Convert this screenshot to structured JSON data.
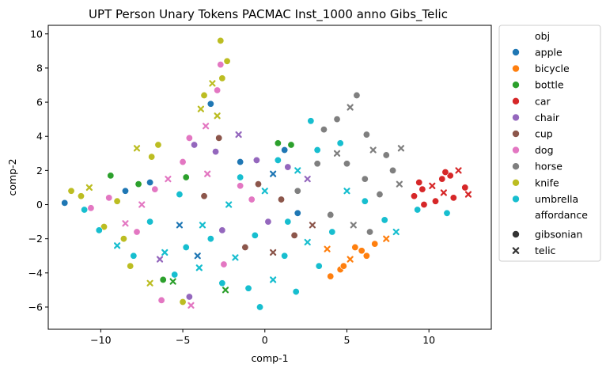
{
  "chart_data": {
    "type": "scatter",
    "title": "UPT Person Unary Tokens PACMAC Inst_1000 anno Gibs_Telic",
    "xlabel": "comp-1",
    "ylabel": "comp-2",
    "xlim": [
      -13.2,
      13.8
    ],
    "ylim": [
      -7.3,
      10.5
    ],
    "xticks": [
      -10,
      -5,
      0,
      5,
      10
    ],
    "yticks": [
      -6,
      -4,
      -2,
      0,
      2,
      4,
      6,
      8,
      10
    ],
    "xtick_labels": [
      "−10",
      "−5",
      "0",
      "5",
      "10"
    ],
    "ytick_labels": [
      "−6",
      "−4",
      "−2",
      "0",
      "2",
      "4",
      "6",
      "8",
      "10"
    ],
    "grid": false,
    "legend": {
      "placement": "outside-right",
      "hue_title": "obj",
      "style_title": "affordance",
      "styles": [
        {
          "name": "gibsonian",
          "marker": "circle"
        },
        {
          "name": "telic",
          "marker": "x"
        }
      ]
    },
    "series": [
      {
        "name": "apple",
        "color": "#1f77b4",
        "points": [
          [
            -12.2,
            0.1
          ],
          [
            -8.5,
            0.8
          ],
          [
            -5.2,
            -1.2
          ],
          [
            -3.3,
            5.9
          ],
          [
            -1.5,
            2.5
          ],
          [
            0.5,
            1.8
          ],
          [
            2.0,
            -0.5
          ],
          [
            -7.0,
            1.3
          ],
          [
            -4.1,
            -3.0
          ],
          [
            1.2,
            3.2
          ]
        ]
      },
      {
        "name": "bicycle",
        "color": "#ff7f0e",
        "points": [
          [
            4.0,
            -4.2
          ],
          [
            4.6,
            -3.8
          ],
          [
            5.2,
            -3.2
          ],
          [
            5.9,
            -2.7
          ],
          [
            6.7,
            -2.3
          ],
          [
            7.4,
            -2.0
          ],
          [
            4.8,
            -3.6
          ],
          [
            6.2,
            -3.0
          ],
          [
            3.8,
            -2.6
          ],
          [
            5.5,
            -2.5
          ]
        ]
      },
      {
        "name": "bottle",
        "color": "#2ca02c",
        "points": [
          [
            -9.4,
            1.7
          ],
          [
            -7.7,
            1.2
          ],
          [
            -5.6,
            -4.5
          ],
          [
            -4.8,
            1.6
          ],
          [
            1.6,
            3.5
          ],
          [
            -2.4,
            -5.0
          ],
          [
            -6.2,
            -4.4
          ],
          [
            0.8,
            3.6
          ]
        ]
      },
      {
        "name": "car",
        "color": "#d62728",
        "points": [
          [
            9.1,
            0.5
          ],
          [
            9.6,
            0.9
          ],
          [
            10.2,
            1.1
          ],
          [
            10.8,
            1.5
          ],
          [
            11.3,
            1.7
          ],
          [
            11.8,
            2.0
          ],
          [
            12.2,
            1.0
          ],
          [
            11.5,
            0.4
          ],
          [
            10.9,
            0.7
          ],
          [
            10.4,
            0.2
          ],
          [
            9.7,
            0.0
          ],
          [
            12.4,
            0.6
          ],
          [
            11.0,
            1.9
          ],
          [
            9.4,
            1.3
          ]
        ]
      },
      {
        "name": "chair",
        "color": "#9467bd",
        "points": [
          [
            -4.3,
            3.5
          ],
          [
            -3.0,
            3.1
          ],
          [
            -1.6,
            4.1
          ],
          [
            -0.5,
            2.6
          ],
          [
            1.4,
            2.2
          ],
          [
            -6.4,
            -3.2
          ],
          [
            -4.6,
            -5.4
          ],
          [
            -2.6,
            -1.5
          ],
          [
            2.6,
            1.5
          ],
          [
            0.2,
            -1.0
          ]
        ]
      },
      {
        "name": "cup",
        "color": "#8c564b",
        "points": [
          [
            -2.8,
            3.9
          ],
          [
            -1.2,
            -2.5
          ],
          [
            0.5,
            -2.8
          ],
          [
            1.8,
            -1.8
          ],
          [
            -0.4,
            1.2
          ],
          [
            2.9,
            -1.2
          ],
          [
            -3.7,
            0.5
          ],
          [
            1.0,
            0.3
          ]
        ]
      },
      {
        "name": "dog",
        "color": "#e377c2",
        "points": [
          [
            -10.6,
            -0.2
          ],
          [
            -9.5,
            0.4
          ],
          [
            -8.5,
            -1.1
          ],
          [
            -7.8,
            -1.6
          ],
          [
            -6.7,
            0.9
          ],
          [
            -5.9,
            1.5
          ],
          [
            -5.0,
            2.5
          ],
          [
            -4.6,
            3.9
          ],
          [
            -3.6,
            4.6
          ],
          [
            -2.9,
            6.7
          ],
          [
            -2.7,
            8.2
          ],
          [
            -3.5,
            1.8
          ],
          [
            -1.5,
            1.1
          ],
          [
            -6.3,
            -5.6
          ],
          [
            -4.5,
            -5.9
          ],
          [
            -2.5,
            -3.5
          ],
          [
            -0.8,
            0.3
          ],
          [
            -7.5,
            0.0
          ]
        ]
      },
      {
        "name": "horse",
        "color": "#7f7f7f",
        "points": [
          [
            3.6,
            4.4
          ],
          [
            4.4,
            5.0
          ],
          [
            5.2,
            5.7
          ],
          [
            5.6,
            6.4
          ],
          [
            6.2,
            4.1
          ],
          [
            6.6,
            3.2
          ],
          [
            7.4,
            2.9
          ],
          [
            7.8,
            2.0
          ],
          [
            8.2,
            1.2
          ],
          [
            5.0,
            2.4
          ],
          [
            6.1,
            1.5
          ],
          [
            4.4,
            3.0
          ],
          [
            3.2,
            2.4
          ],
          [
            7.0,
            0.6
          ],
          [
            5.4,
            -1.2
          ],
          [
            4.0,
            -0.6
          ],
          [
            6.4,
            -1.6
          ],
          [
            8.3,
            3.3
          ],
          [
            2.0,
            0.8
          ]
        ]
      },
      {
        "name": "knife",
        "color": "#bcbd22",
        "points": [
          [
            -11.8,
            0.8
          ],
          [
            -11.2,
            0.5
          ],
          [
            -10.7,
            1.0
          ],
          [
            -9.8,
            -1.3
          ],
          [
            -8.6,
            -2.0
          ],
          [
            -7.8,
            3.3
          ],
          [
            -6.5,
            3.5
          ],
          [
            -3.7,
            6.4
          ],
          [
            -3.2,
            7.1
          ],
          [
            -2.7,
            9.6
          ],
          [
            -2.3,
            8.4
          ],
          [
            -3.9,
            5.6
          ],
          [
            -2.6,
            7.4
          ],
          [
            -9.0,
            0.2
          ],
          [
            -7.0,
            -4.6
          ],
          [
            -5.0,
            -5.7
          ],
          [
            -8.2,
            -3.6
          ],
          [
            -2.9,
            5.2
          ],
          [
            -6.9,
            2.8
          ]
        ]
      },
      {
        "name": "umbrella",
        "color": "#17becf",
        "points": [
          [
            -11.0,
            -0.3
          ],
          [
            -10.1,
            -1.5
          ],
          [
            -9.0,
            -2.4
          ],
          [
            -8.0,
            -3.0
          ],
          [
            -7.0,
            -1.0
          ],
          [
            -6.1,
            -2.8
          ],
          [
            -5.5,
            -4.1
          ],
          [
            -4.8,
            -2.5
          ],
          [
            -4.0,
            -3.7
          ],
          [
            -3.3,
            -2.0
          ],
          [
            -2.6,
            -4.6
          ],
          [
            -1.8,
            -3.1
          ],
          [
            -1.0,
            -4.9
          ],
          [
            -0.3,
            -6.0
          ],
          [
            0.5,
            -4.4
          ],
          [
            1.2,
            -3.0
          ],
          [
            1.9,
            -5.1
          ],
          [
            2.6,
            -2.2
          ],
          [
            3.3,
            -3.6
          ],
          [
            4.1,
            -1.6
          ],
          [
            0.0,
            0.8
          ],
          [
            -1.5,
            1.6
          ],
          [
            0.8,
            2.6
          ],
          [
            2.0,
            2.0
          ],
          [
            3.2,
            3.2
          ],
          [
            4.6,
            3.6
          ],
          [
            5.0,
            0.8
          ],
          [
            6.1,
            0.2
          ],
          [
            7.3,
            -0.9
          ],
          [
            8.0,
            -1.6
          ],
          [
            9.3,
            -0.3
          ],
          [
            11.1,
            -0.5
          ],
          [
            -3.8,
            -1.2
          ],
          [
            -5.2,
            0.6
          ],
          [
            2.8,
            4.9
          ],
          [
            -2.2,
            0.0
          ],
          [
            1.4,
            -1.0
          ],
          [
            -0.6,
            -1.8
          ]
        ]
      }
    ]
  }
}
